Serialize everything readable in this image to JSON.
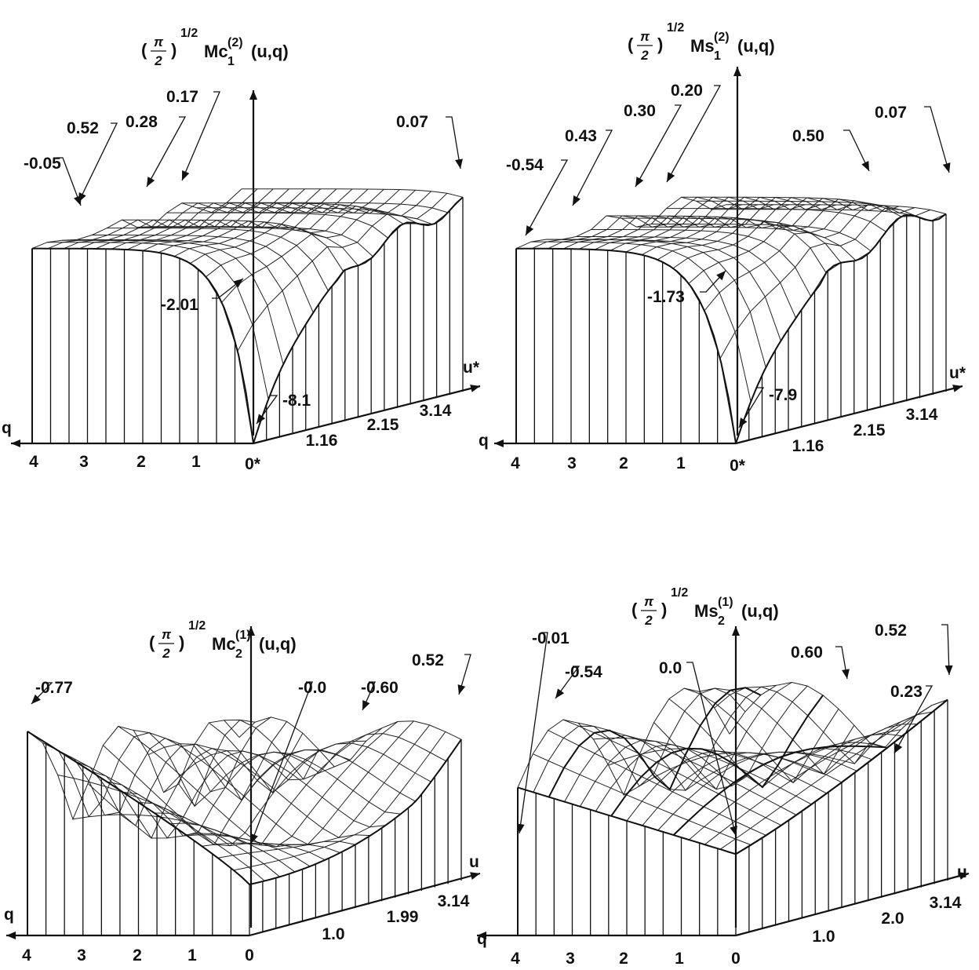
{
  "chart_data": [
    {
      "type": "surface",
      "title": {
        "prefix": "Mc",
        "sub": "1",
        "sup": "(2)",
        "args": "(u,q)",
        "factor_exp": "1/2"
      },
      "x_axis": {
        "label": "u*",
        "ticks": [
          "1.16",
          "2.15",
          "3.14"
        ]
      },
      "q_axis": {
        "label": "q",
        "ticks": [
          "4",
          "3",
          "2",
          "1",
          "0*"
        ]
      },
      "annotations": [
        "-0.05",
        "0.52",
        "0.28",
        "0.17",
        "0.07",
        "-2.01",
        "-8.1"
      ]
    },
    {
      "type": "surface",
      "title": {
        "prefix": "Ms",
        "sub": "1",
        "sup": "(2)",
        "args": "(u,q)",
        "factor_exp": "1/2"
      },
      "x_axis": {
        "label": "u*",
        "ticks": [
          "1.16",
          "2.15",
          "3.14"
        ]
      },
      "q_axis": {
        "label": "q",
        "ticks": [
          "4",
          "3",
          "2",
          "1",
          "0*"
        ]
      },
      "annotations": [
        "-0.54",
        "0.43",
        "0.30",
        "0.20",
        "0.50",
        "0.07",
        "-1.73",
        "-7.9"
      ]
    },
    {
      "type": "surface",
      "title": {
        "prefix": "Mc",
        "sub": "2",
        "sup": "(1)",
        "args": "(u,q)",
        "factor_exp": "1/2"
      },
      "x_axis": {
        "label": "u",
        "ticks": [
          "1.0",
          "1.99",
          "3.14"
        ]
      },
      "q_axis": {
        "label": "q",
        "ticks": [
          "4",
          "3",
          "2",
          "1",
          "0"
        ]
      },
      "annotations": [
        "-0.77",
        "-0.0",
        "-0.60",
        "0.52"
      ]
    },
    {
      "type": "surface",
      "title": {
        "prefix": "Ms",
        "sub": "2",
        "sup": "(1)",
        "args": "(u,q)",
        "factor_exp": "1/2"
      },
      "x_axis": {
        "label": "u",
        "ticks": [
          "1.0",
          "2.0",
          "3.14"
        ]
      },
      "q_axis": {
        "label": "q",
        "ticks": [
          "4",
          "3",
          "2",
          "1",
          "0"
        ]
      },
      "annotations": [
        "-0.01",
        "-0.54",
        "0.0",
        "0.60",
        "0.23",
        "0.52"
      ]
    }
  ],
  "title_factor": {
    "pi": "π",
    "two": "2"
  }
}
